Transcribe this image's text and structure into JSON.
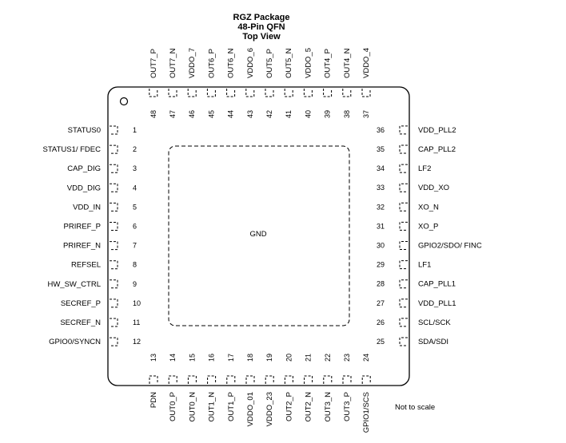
{
  "title": [
    "RGZ Package",
    "48-Pin QFN",
    "Top View"
  ],
  "center_label": "GND",
  "note": "Not to scale",
  "pins": {
    "left": [
      {
        "num": "1",
        "name": "STATUS0"
      },
      {
        "num": "2",
        "name": "STATUS1/ FDEC"
      },
      {
        "num": "3",
        "name": "CAP_DIG"
      },
      {
        "num": "4",
        "name": "VDD_DIG"
      },
      {
        "num": "5",
        "name": "VDD_IN"
      },
      {
        "num": "6",
        "name": "PRIREF_P"
      },
      {
        "num": "7",
        "name": "PRIREF_N"
      },
      {
        "num": "8",
        "name": "REFSEL"
      },
      {
        "num": "9",
        "name": "HW_SW_CTRL"
      },
      {
        "num": "10",
        "name": "SECREF_P"
      },
      {
        "num": "11",
        "name": "SECREF_N"
      },
      {
        "num": "12",
        "name": "GPIO0/SYNCN"
      }
    ],
    "bottom": [
      {
        "num": "13",
        "name": "PDN"
      },
      {
        "num": "14",
        "name": "OUT0_P"
      },
      {
        "num": "15",
        "name": "OUT0_N"
      },
      {
        "num": "16",
        "name": "OUT1_N"
      },
      {
        "num": "17",
        "name": "OUT1_P"
      },
      {
        "num": "18",
        "name": "VDDO_01"
      },
      {
        "num": "19",
        "name": "VDDO_23"
      },
      {
        "num": "20",
        "name": "OUT2_P"
      },
      {
        "num": "21",
        "name": "OUT2_N"
      },
      {
        "num": "22",
        "name": "OUT3_N"
      },
      {
        "num": "23",
        "name": "OUT3_P"
      },
      {
        "num": "24",
        "name": "GPIO1/SCS"
      }
    ],
    "right": [
      {
        "num": "25",
        "name": "SDA/SDI"
      },
      {
        "num": "26",
        "name": "SCL/SCK"
      },
      {
        "num": "27",
        "name": "VDD_PLL1"
      },
      {
        "num": "28",
        "name": "CAP_PLL1"
      },
      {
        "num": "29",
        "name": "LF1"
      },
      {
        "num": "30",
        "name": "GPIO2/SDO/ FINC"
      },
      {
        "num": "31",
        "name": "XO_P"
      },
      {
        "num": "32",
        "name": "XO_N"
      },
      {
        "num": "33",
        "name": "VDD_XO"
      },
      {
        "num": "34",
        "name": "LF2"
      },
      {
        "num": "35",
        "name": "CAP_PLL2"
      },
      {
        "num": "36",
        "name": "VDD_PLL2"
      }
    ],
    "top": [
      {
        "num": "37",
        "name": "VDDO_4"
      },
      {
        "num": "38",
        "name": "OUT4_N"
      },
      {
        "num": "39",
        "name": "OUT4_P"
      },
      {
        "num": "40",
        "name": "VDDO_5"
      },
      {
        "num": "41",
        "name": "OUT5_N"
      },
      {
        "num": "42",
        "name": "OUT5_P"
      },
      {
        "num": "43",
        "name": "VDDO_6"
      },
      {
        "num": "44",
        "name": "OUT6_N"
      },
      {
        "num": "45",
        "name": "OUT6_P"
      },
      {
        "num": "46",
        "name": "VDDO_7"
      },
      {
        "num": "47",
        "name": "OUT7_N"
      },
      {
        "num": "48",
        "name": "OUT7_P"
      }
    ]
  }
}
